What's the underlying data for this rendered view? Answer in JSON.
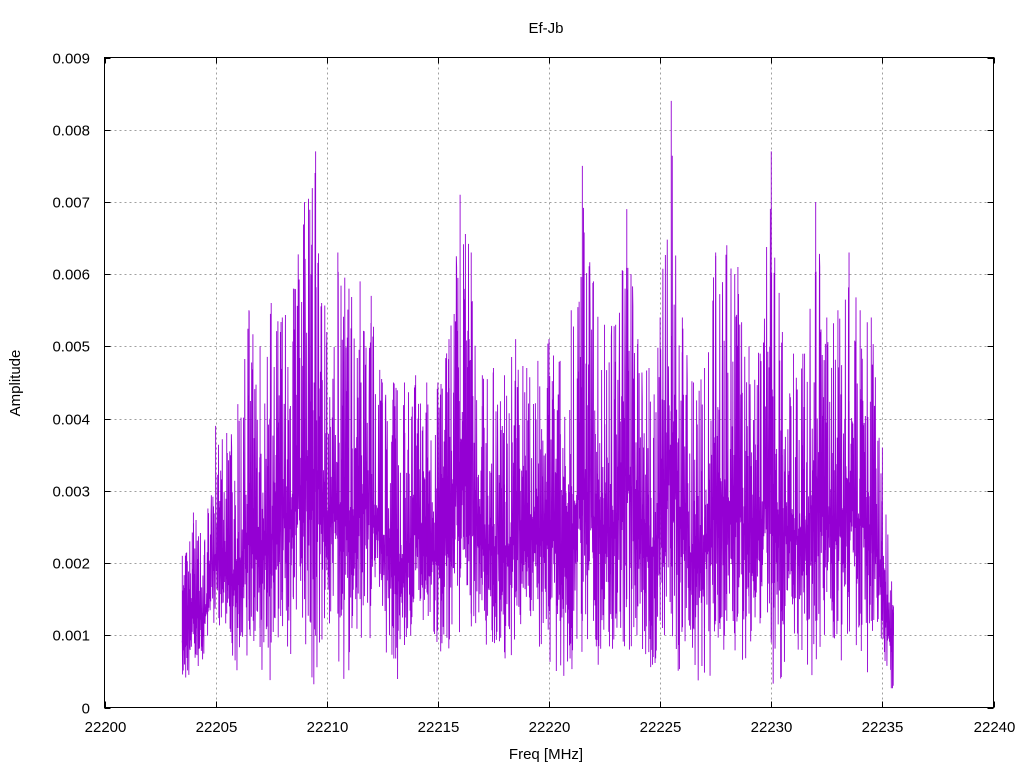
{
  "chart_data": {
    "type": "line",
    "title": "Ef-Jb",
    "xlabel": "Freq [MHz]",
    "ylabel": "Amplitude",
    "xlim": [
      22200,
      22240
    ],
    "ylim": [
      0,
      0.009
    ],
    "x_ticks": [
      "22200",
      "22205",
      "22210",
      "22215",
      "22220",
      "22225",
      "22230",
      "22235",
      "22240"
    ],
    "y_ticks": [
      "0",
      "0.001",
      "0.002",
      "0.003",
      "0.004",
      "0.005",
      "0.006",
      "0.007",
      "0.008",
      "0.009"
    ],
    "grid": true,
    "legend": "none",
    "series_color": "#9400d3",
    "series": [
      {
        "x_start": 22203.5,
        "x_end": 22235.5,
        "x": [
          22203.5,
          22204.0,
          22204.5,
          22205.0,
          22205.5,
          22206.0,
          22206.5,
          22207.0,
          22207.5,
          22208.0,
          22208.5,
          22209.0,
          22209.5,
          22210.0,
          22210.5,
          22211.0,
          22211.5,
          22212.0,
          22212.5,
          22213.0,
          22213.5,
          22214.0,
          22214.5,
          22215.0,
          22215.5,
          22216.0,
          22216.5,
          22217.0,
          22217.5,
          22218.0,
          22218.5,
          22219.0,
          22219.5,
          22220.0,
          22220.5,
          22221.0,
          22221.5,
          22222.0,
          22222.5,
          22223.0,
          22223.5,
          22224.0,
          22224.5,
          22225.0,
          22225.5,
          22226.0,
          22226.5,
          22227.0,
          22227.5,
          22228.0,
          22228.5,
          22229.0,
          22229.5,
          22230.0,
          22230.5,
          22231.0,
          22231.5,
          22232.0,
          22232.5,
          22233.0,
          22233.5,
          22234.0,
          22234.5,
          22235.0,
          22235.5
        ],
        "upper": [
          0.0021,
          0.0027,
          0.0023,
          0.0039,
          0.0038,
          0.0042,
          0.0055,
          0.005,
          0.0056,
          0.0054,
          0.0058,
          0.007,
          0.0077,
          0.0052,
          0.0063,
          0.0058,
          0.0059,
          0.0057,
          0.0045,
          0.0045,
          0.0045,
          0.0046,
          0.0045,
          0.0045,
          0.0051,
          0.0071,
          0.0063,
          0.0046,
          0.0047,
          0.0046,
          0.0051,
          0.0047,
          0.0048,
          0.0051,
          0.0048,
          0.0055,
          0.0075,
          0.0059,
          0.0053,
          0.0053,
          0.0069,
          0.0051,
          0.0047,
          0.0054,
          0.0084,
          0.0054,
          0.0045,
          0.0047,
          0.0063,
          0.0064,
          0.0061,
          0.005,
          0.0049,
          0.0077,
          0.0052,
          0.0049,
          0.0049,
          0.007,
          0.0054,
          0.0055,
          0.0063,
          0.0055,
          0.0054,
          0.0036,
          0.0014
        ],
        "lower": [
          0.0001,
          0.0005,
          0.0006,
          0.0012,
          0.0005,
          0.0003,
          0.0004,
          0.0003,
          0.0001,
          0.0008,
          0.0007,
          0.0007,
          0.0002,
          0.0011,
          0.0005,
          0.0003,
          0.0007,
          0.0009,
          0.001,
          0.0003,
          0.0003,
          0.0011,
          0.0009,
          0.0005,
          0.0006,
          0.001,
          0.0005,
          0.0009,
          0.0006,
          0.0003,
          0.0008,
          0.0012,
          0.0007,
          0.0006,
          0.0004,
          0.0003,
          0.0004,
          0.0004,
          0.0007,
          0.0005,
          0.0007,
          0.0006,
          0.0004,
          0.0004,
          0.0005,
          0.0005,
          0.0003,
          0.0003,
          0.0004,
          0.0004,
          0.0005,
          0.0005,
          0.0008,
          0.0001,
          0.0004,
          0.0009,
          0.0005,
          0.0004,
          0.0008,
          0.0004,
          0.0008,
          0.0005,
          0.0004,
          0.0004,
          0.0002
        ]
      }
    ]
  }
}
